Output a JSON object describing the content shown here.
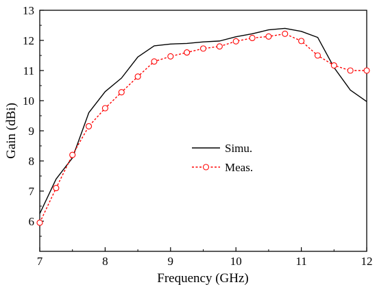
{
  "chart_data": {
    "type": "line",
    "title": "",
    "xlabel": "Frequency (GHz)",
    "ylabel": "Gain (dBi)",
    "xlim": [
      7,
      12
    ],
    "ylim": [
      5,
      13
    ],
    "xticks": [
      7,
      8,
      9,
      10,
      11,
      12
    ],
    "yticks": [
      6,
      7,
      8,
      9,
      10,
      11,
      12,
      13
    ],
    "grid": false,
    "legend_position": "center",
    "x": [
      7,
      7.25,
      7.5,
      7.75,
      8,
      8.25,
      8.5,
      8.75,
      9,
      9.25,
      9.5,
      9.75,
      10,
      10.25,
      10.5,
      10.75,
      11,
      11.25,
      11.5,
      11.75,
      12
    ],
    "series": [
      {
        "name": "Simu.",
        "color": "#000000",
        "style": "solid",
        "marker": "none",
        "values": [
          6.25,
          7.4,
          8.1,
          9.6,
          10.3,
          10.75,
          11.45,
          11.82,
          11.88,
          11.9,
          11.95,
          11.98,
          12.12,
          12.22,
          12.35,
          12.4,
          12.3,
          12.1,
          11.1,
          10.35,
          9.97
        ]
      },
      {
        "name": "Meas.",
        "color": "#ff0000",
        "style": "dashed",
        "marker": "open-circle",
        "values": [
          5.95,
          7.1,
          8.2,
          9.15,
          9.75,
          10.28,
          10.8,
          11.3,
          11.47,
          11.6,
          11.73,
          11.8,
          11.97,
          12.08,
          12.13,
          12.22,
          11.98,
          11.5,
          11.17,
          11.0,
          11.0
        ]
      }
    ]
  }
}
